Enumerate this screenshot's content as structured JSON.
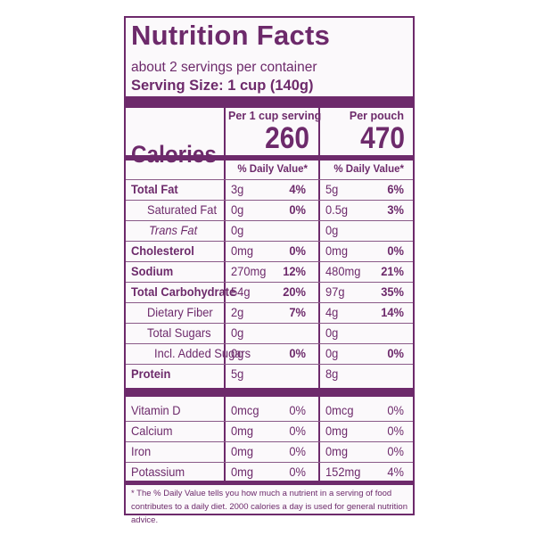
{
  "title": "Nutrition Facts",
  "servings_per_container": "about 2 servings per container",
  "serving_size": "Serving Size: 1 cup (140g)",
  "columns": {
    "per_serving": "Per 1 cup serving",
    "per_pouch": "Per pouch",
    "daily_value": "% Daily Value*"
  },
  "calories": {
    "label": "Calories",
    "per_serving": "260",
    "per_pouch": "470"
  },
  "nutrients": [
    {
      "name": "Total Fat",
      "a": "3g",
      "ad": "4%",
      "b": "5g",
      "bd": "6%"
    },
    {
      "name": "Saturated Fat",
      "a": "0g",
      "ad": "0%",
      "b": "0.5g",
      "bd": "3%"
    },
    {
      "name": "Trans Fat",
      "a": "0g",
      "ad": "",
      "b": "0g",
      "bd": ""
    },
    {
      "name": "Cholesterol",
      "a": "0mg",
      "ad": "0%",
      "b": "0mg",
      "bd": "0%"
    },
    {
      "name": "Sodium",
      "a": "270mg",
      "ad": "12%",
      "b": "480mg",
      "bd": "21%"
    },
    {
      "name": "Total Carbohydrate",
      "a": "54g",
      "ad": "20%",
      "b": "97g",
      "bd": "35%"
    },
    {
      "name": "Dietary Fiber",
      "a": "2g",
      "ad": "7%",
      "b": "4g",
      "bd": "14%"
    },
    {
      "name": "Total Sugars",
      "a": "0g",
      "ad": "",
      "b": "0g",
      "bd": ""
    },
    {
      "name": "Incl. Added Sugars",
      "a": "0g",
      "ad": "0%",
      "b": "0g",
      "bd": "0%"
    },
    {
      "name": "Protein",
      "a": "5g",
      "ad": "",
      "b": "8g",
      "bd": ""
    }
  ],
  "vitamins": [
    {
      "name": "Vitamin D",
      "a": "0mcg",
      "ad": "0%",
      "b": "0mcg",
      "bd": "0%"
    },
    {
      "name": "Calcium",
      "a": "0mg",
      "ad": "0%",
      "b": "0mg",
      "bd": "0%"
    },
    {
      "name": "Iron",
      "a": "0mg",
      "ad": "0%",
      "b": "0mg",
      "bd": "0%"
    },
    {
      "name": "Potassium",
      "a": "0mg",
      "ad": "0%",
      "b": "152mg",
      "bd": "4%"
    }
  ],
  "footnote": "* The % Daily Value tells you how much a nutrient in a serving of food contributes to a daily diet. 2000 calories a day is used for general nutrition advice.",
  "colors": {
    "label": "#6d2a6b",
    "background": "#fbf9fb"
  }
}
